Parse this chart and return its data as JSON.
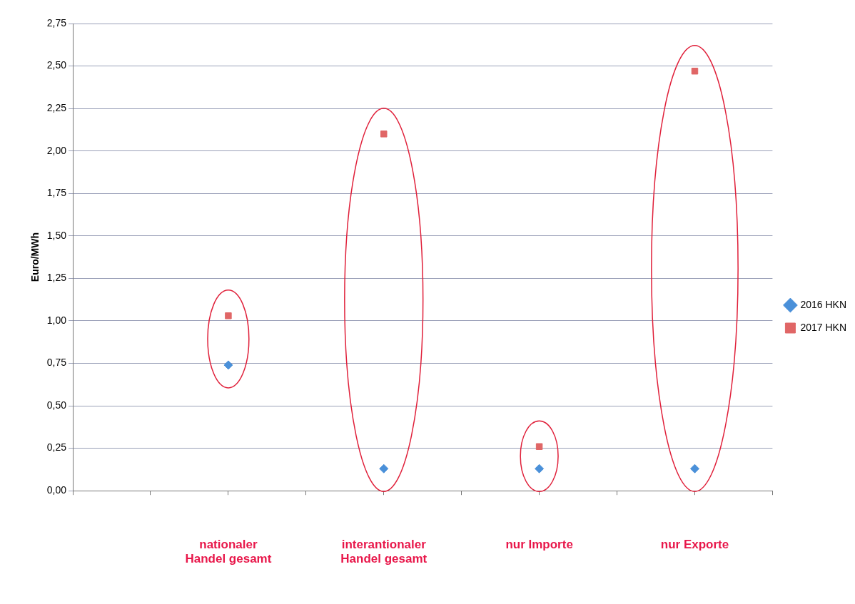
{
  "chart_data": {
    "type": "scatter",
    "ylabel": "Euro/MWh",
    "categories": [
      null,
      null,
      "nationaler\nHandel gesamt",
      null,
      "interantionaler\nHandel gesamt",
      null,
      "nur Importe",
      null,
      "nur Exporte",
      null
    ],
    "ylim": [
      0,
      2.75
    ],
    "yticks": [
      {
        "value": 0,
        "label": "0,00"
      },
      {
        "value": 0.25,
        "label": "0,25"
      },
      {
        "value": 0.5,
        "label": "0,50"
      },
      {
        "value": 0.75,
        "label": "0,75"
      },
      {
        "value": 1,
        "label": "1,00"
      },
      {
        "value": 1.25,
        "label": "1,25"
      },
      {
        "value": 1.5,
        "label": "1,50"
      },
      {
        "value": 1.75,
        "label": "1,75"
      },
      {
        "value": 2,
        "label": "2,00"
      },
      {
        "value": 2.25,
        "label": "2,25"
      },
      {
        "value": 2.5,
        "label": "2,50"
      },
      {
        "value": 2.75,
        "label": "2,75"
      }
    ],
    "grid": "y",
    "legend": "right",
    "series": [
      {
        "name": "2016 HKN",
        "color": "#4a90d9",
        "marker": "diamond",
        "values": [
          null,
          null,
          0.74,
          null,
          0.13,
          null,
          0.13,
          null,
          0.13,
          null
        ]
      },
      {
        "name": "2017 HKN",
        "color": "#e06666",
        "marker": "square",
        "values": [
          null,
          null,
          1.03,
          null,
          2.1,
          null,
          0.26,
          null,
          2.47,
          null
        ]
      }
    ]
  }
}
